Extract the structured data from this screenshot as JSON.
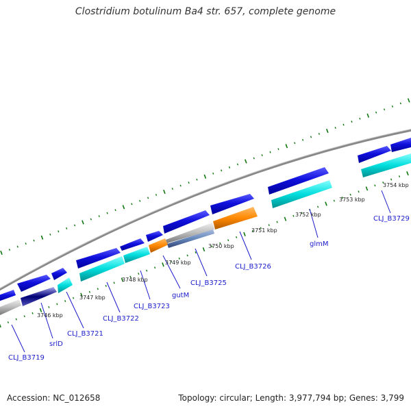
{
  "title": "Clostridium botulinum Ba4 str. 657, complete genome",
  "footer": {
    "accession": "Accession: NC_012658",
    "info": "Topology: circular; Length: 3,977,794 bp; Genes: 3,799"
  },
  "colors": {
    "forward_cds": "#1010dd",
    "reverse_cds": "#00dddd",
    "orange_feature": "#ff8800",
    "grey_feature": "#bbbbbb",
    "navy_feature": "#000077",
    "steel_feature": "#6688bb",
    "backbone": "#888888",
    "ticks": "#117711",
    "label_text": "#1a1acc"
  },
  "kbp_ticks": [
    {
      "kbp": 3746,
      "label": "3746 kbp"
    },
    {
      "kbp": 3747,
      "label": "3747 kbp"
    },
    {
      "kbp": 3748,
      "label": "3748 kbp"
    },
    {
      "kbp": 3749,
      "label": "3749 kbp"
    },
    {
      "kbp": 3750,
      "label": "3750 kbp"
    },
    {
      "kbp": 3751,
      "label": "3751 kbp"
    },
    {
      "kbp": 3752,
      "label": "3752 kbp"
    },
    {
      "kbp": 3753,
      "label": "3753 kbp"
    },
    {
      "kbp": 3754,
      "label": "3754 kbp"
    }
  ],
  "gene_labels": [
    {
      "name": "CLJ_B3719"
    },
    {
      "name": "srlD"
    },
    {
      "name": "CLJ_B3721"
    },
    {
      "name": "CLJ_B3722"
    },
    {
      "name": "CLJ_B3723"
    },
    {
      "name": "gutM"
    },
    {
      "name": "CLJ_B3725"
    },
    {
      "name": "CLJ_B3726"
    },
    {
      "name": "glmM"
    },
    {
      "name": "CLJ_B3729"
    }
  ]
}
